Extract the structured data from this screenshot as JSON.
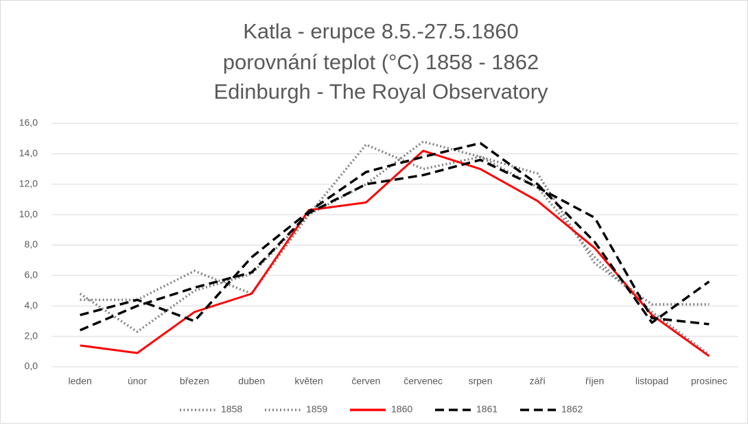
{
  "chart_data": {
    "type": "line",
    "title": [
      "Katla - erupce 8.5.-27.5.1860",
      "porovnání teplot (°C) 1858 - 1862",
      "Edinburgh - The Royal Observatory"
    ],
    "categories": [
      "leden",
      "únor",
      "březen",
      "duben",
      "květen",
      "červen",
      "červenec",
      "srpen",
      "září",
      "říjen",
      "listopad",
      "prosinec"
    ],
    "series": [
      {
        "name": "1858",
        "color": "#808080",
        "style": "dotted",
        "values": [
          4.8,
          2.3,
          5.0,
          6.1,
          10.0,
          14.6,
          13.0,
          13.8,
          12.7,
          6.8,
          4.1,
          4.1
        ]
      },
      {
        "name": "1859",
        "color": "#808080",
        "style": "dotted",
        "values": [
          4.4,
          4.4,
          6.3,
          4.8,
          10.0,
          12.0,
          14.8,
          13.8,
          11.8,
          7.2,
          3.6,
          0.8
        ]
      },
      {
        "name": "1860",
        "color": "#ff0000",
        "style": "solid",
        "values": [
          1.4,
          0.9,
          3.6,
          4.8,
          10.3,
          10.8,
          14.2,
          13.0,
          10.9,
          7.8,
          3.4,
          0.7
        ]
      },
      {
        "name": "1861",
        "color": "#000000",
        "style": "dashed",
        "values": [
          2.4,
          4.0,
          5.2,
          6.2,
          10.1,
          12.0,
          12.6,
          13.6,
          11.8,
          9.8,
          3.2,
          2.8
        ]
      },
      {
        "name": "1862",
        "color": "#000000",
        "style": "dashed",
        "values": [
          3.4,
          4.4,
          3.0,
          7.2,
          10.2,
          12.8,
          13.8,
          14.7,
          12.0,
          8.2,
          2.9,
          5.6
        ]
      }
    ],
    "ylim": [
      0,
      16
    ],
    "yticks": [
      {
        "value": 0,
        "label": "0,0"
      },
      {
        "value": 2,
        "label": "2,0"
      },
      {
        "value": 4,
        "label": "4,0"
      },
      {
        "value": 6,
        "label": "6,0"
      },
      {
        "value": 8,
        "label": "8,0"
      },
      {
        "value": 10,
        "label": "10,0"
      },
      {
        "value": 12,
        "label": "12,0"
      },
      {
        "value": 14,
        "label": "14,0"
      },
      {
        "value": 16,
        "label": "16,0"
      }
    ],
    "grid": true
  }
}
